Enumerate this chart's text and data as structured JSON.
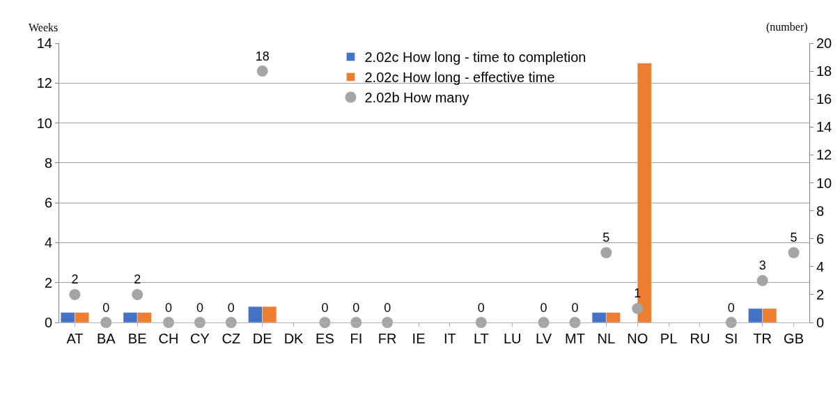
{
  "chart_data": {
    "type": "bar",
    "ylabel": "Weeks",
    "y2label": "(number)",
    "categories": [
      "AT",
      "BA",
      "BE",
      "CH",
      "CY",
      "CZ",
      "DE",
      "DK",
      "ES",
      "FI",
      "FR",
      "IE",
      "IT",
      "LT",
      "LU",
      "LV",
      "MT",
      "NL",
      "NO",
      "PL",
      "RU",
      "SI",
      "TR",
      "GB"
    ],
    "series": [
      {
        "name": "2.02c How long - time to completion",
        "color": "#4472c4",
        "values": [
          0.5,
          null,
          0.5,
          null,
          null,
          null,
          0.8,
          null,
          null,
          null,
          null,
          null,
          null,
          null,
          null,
          null,
          null,
          0.5,
          null,
          null,
          null,
          null,
          0.7,
          null
        ]
      },
      {
        "name": "2.02c How long - effective time",
        "color": "#ed7d31",
        "values": [
          0.5,
          null,
          0.5,
          null,
          null,
          null,
          0.8,
          null,
          null,
          null,
          null,
          null,
          null,
          null,
          null,
          null,
          null,
          0.5,
          13,
          null,
          null,
          null,
          0.7,
          null
        ]
      },
      {
        "name": "2.02b How many",
        "type": "scatter",
        "axis": "y2",
        "color": "#a5a5a5",
        "marker": "circle",
        "values": [
          2,
          0,
          2,
          0,
          0,
          0,
          18,
          null,
          0,
          0,
          0,
          null,
          null,
          0,
          null,
          0,
          0,
          5,
          1,
          null,
          null,
          0,
          3,
          5
        ],
        "value_labels": [
          "2",
          "0",
          "2",
          "0",
          "0",
          "0",
          "18",
          null,
          "0",
          "0",
          "0",
          null,
          null,
          "0",
          null,
          "0",
          "0",
          "5",
          "1",
          null,
          null,
          "0",
          "3",
          "5"
        ]
      }
    ],
    "ylim": [
      0,
      14
    ],
    "yticks": [
      0,
      2,
      4,
      6,
      8,
      10,
      12,
      14
    ],
    "y2lim": [
      0,
      20
    ],
    "y2ticks": [
      0,
      2,
      4,
      6,
      8,
      10,
      12,
      14,
      16,
      18,
      20
    ],
    "grid": "y",
    "legend": "top"
  }
}
